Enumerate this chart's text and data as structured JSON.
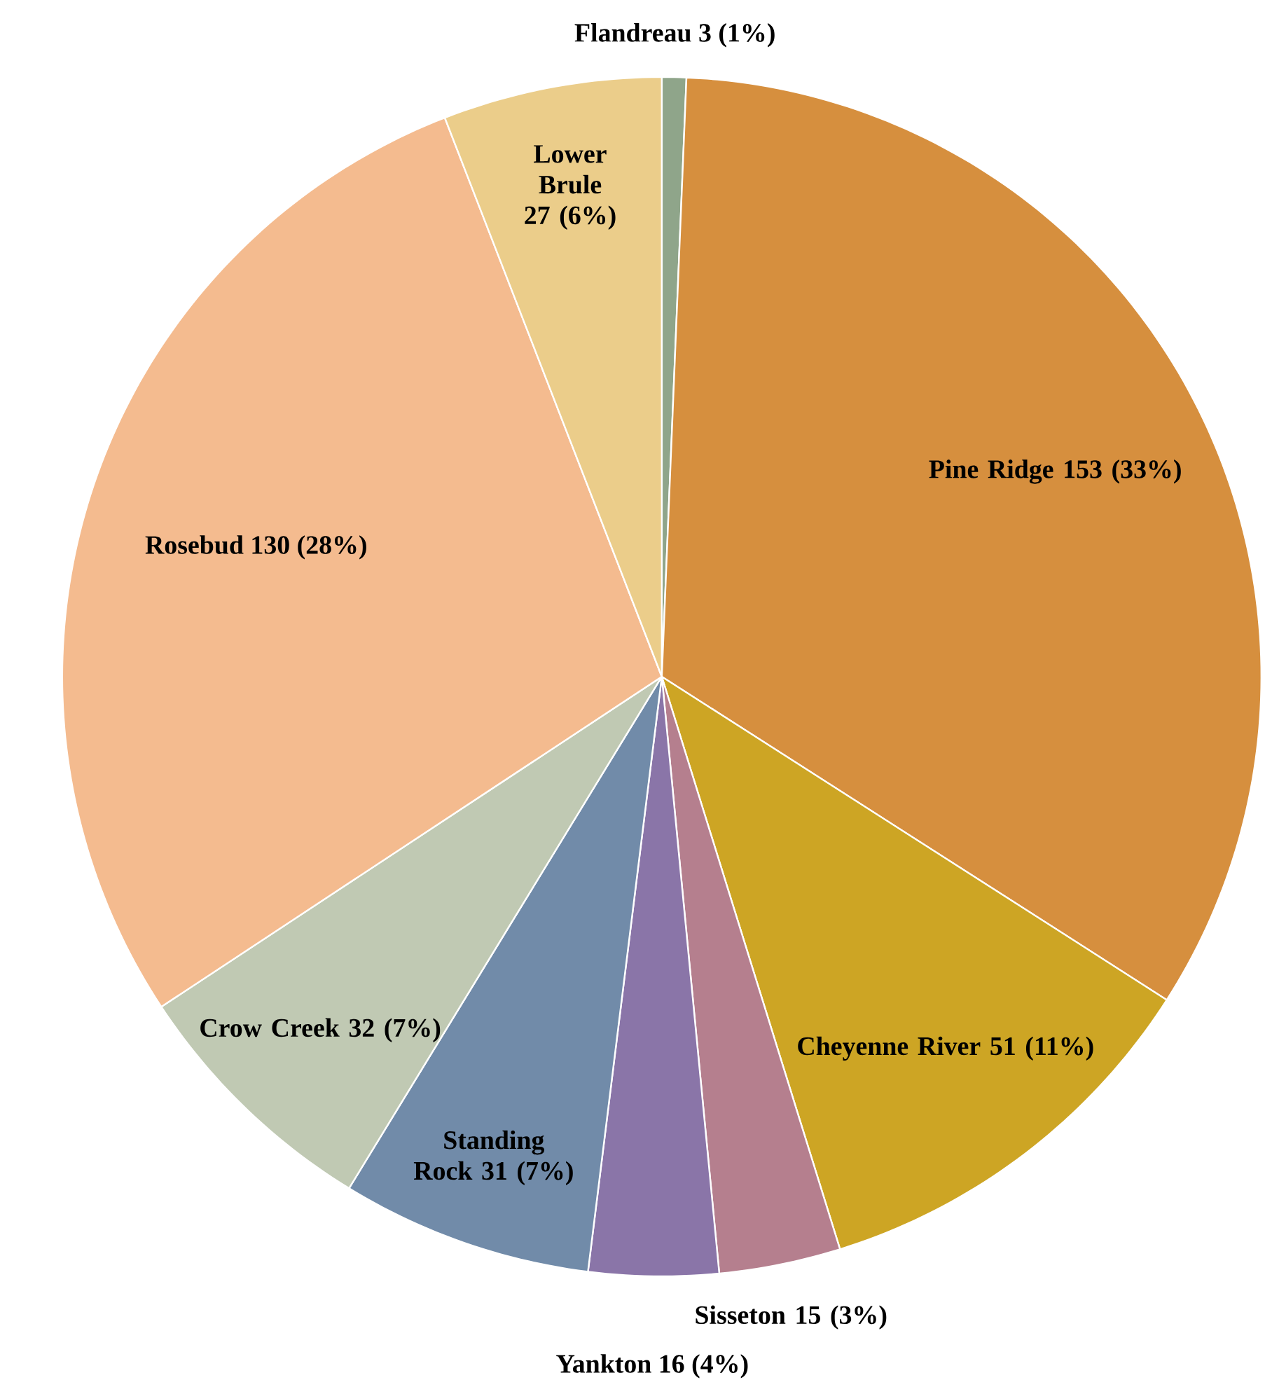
{
  "chart_data": {
    "type": "pie",
    "categories": [
      "Flandreau",
      "Pine Ridge",
      "Cheyenne River",
      "Sisseton",
      "Yankton",
      "Standing Rock",
      "Crow Creek",
      "Rosebud",
      "Lower Brule"
    ],
    "values": [
      3,
      153,
      51,
      15,
      16,
      31,
      32,
      130,
      27
    ],
    "colors": [
      "#8fa58a",
      "#d68f3e",
      "#cda524",
      "#b57f8e",
      "#8a75a8",
      "#718ba9",
      "#c0c9b3",
      "#f4bb8f",
      "#ebcd8a"
    ],
    "value_labels": [
      "3 (1%)",
      "153 (33%)",
      "51 (11%)",
      "15 (3%)",
      "16 (4%)",
      "31 (7%)",
      "32 (7%)",
      "130 (28%)",
      "27 (6%)"
    ]
  }
}
